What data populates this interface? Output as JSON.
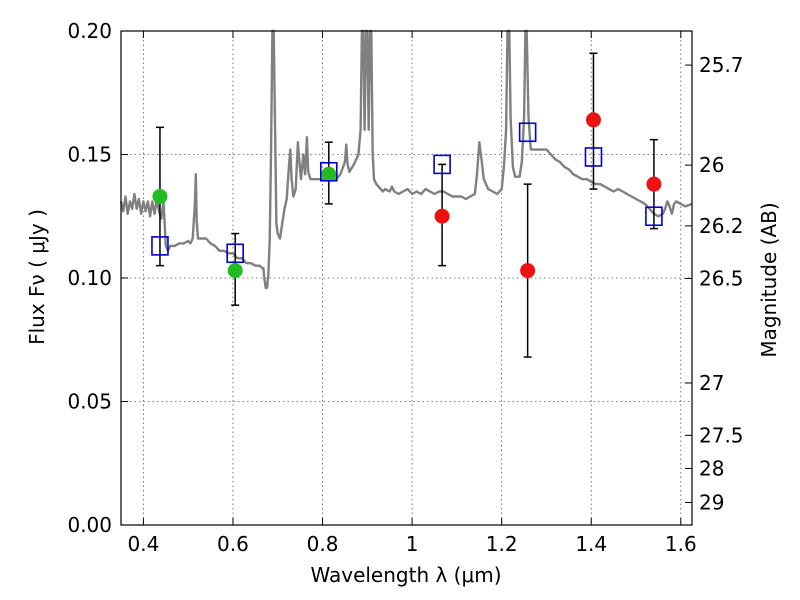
{
  "chart_data": {
    "type": "scatter",
    "xlabel": "Wavelength  λ (μm)",
    "ylabel": "Flux  Fν  ( μJy )",
    "ylabel_right": "Magnitude (AB)",
    "xlim": [
      0.35,
      1.625
    ],
    "ylim": [
      0.0,
      0.2
    ],
    "grid": true,
    "x_ticks": [
      0.4,
      0.6,
      0.8,
      1.0,
      1.2,
      1.4,
      1.6
    ],
    "x_tick_labels": [
      "0.4",
      "0.6",
      "0.8",
      "1",
      "1.2",
      "1.4",
      "1.6"
    ],
    "y_ticks": [
      0.0,
      0.05,
      0.1,
      0.15,
      0.2
    ],
    "y_tick_labels": [
      "0.00",
      "0.05",
      "0.10",
      "0.15",
      "0.20"
    ],
    "mag_ticks": [
      {
        "label": "25.7",
        "flux": 0.1862
      },
      {
        "label": "26",
        "flux": 0.1457
      },
      {
        "label": "26.2",
        "flux": 0.1211
      },
      {
        "label": "26.5",
        "flux": 0.0998
      },
      {
        "label": "27",
        "flux": 0.0575
      },
      {
        "label": "27.5",
        "flux": 0.0363
      },
      {
        "label": "28",
        "flux": 0.0229
      },
      {
        "label": "29",
        "flux": 0.0091
      }
    ],
    "colors": {
      "spectrum": "#808080",
      "model_box": "#0000cc",
      "green": "#22bb22",
      "red": "#ee1111",
      "errorbar": "#000000",
      "grid": "#555555"
    },
    "series": [
      {
        "kind": "spectrum",
        "points": [
          [
            0.35,
            0.131
          ],
          [
            0.355,
            0.127
          ],
          [
            0.36,
            0.133
          ],
          [
            0.365,
            0.126
          ],
          [
            0.37,
            0.131
          ],
          [
            0.375,
            0.128
          ],
          [
            0.38,
            0.134
          ],
          [
            0.385,
            0.128
          ],
          [
            0.39,
            0.132
          ],
          [
            0.395,
            0.126
          ],
          [
            0.4,
            0.131
          ],
          [
            0.405,
            0.127
          ],
          [
            0.41,
            0.131
          ],
          [
            0.415,
            0.125
          ],
          [
            0.42,
            0.131
          ],
          [
            0.425,
            0.126
          ],
          [
            0.43,
            0.132
          ],
          [
            0.435,
            0.127
          ],
          [
            0.44,
            0.124
          ],
          [
            0.445,
            0.131
          ],
          [
            0.45,
            0.113
          ],
          [
            0.455,
            0.111
          ],
          [
            0.46,
            0.113
          ],
          [
            0.47,
            0.113
          ],
          [
            0.48,
            0.114
          ],
          [
            0.49,
            0.114
          ],
          [
            0.5,
            0.115
          ],
          [
            0.505,
            0.114
          ],
          [
            0.51,
            0.116
          ],
          [
            0.515,
            0.13
          ],
          [
            0.517,
            0.142
          ],
          [
            0.519,
            0.123
          ],
          [
            0.522,
            0.116
          ],
          [
            0.53,
            0.116
          ],
          [
            0.54,
            0.116
          ],
          [
            0.55,
            0.114
          ],
          [
            0.56,
            0.113
          ],
          [
            0.57,
            0.111
          ],
          [
            0.58,
            0.111
          ],
          [
            0.59,
            0.11
          ],
          [
            0.6,
            0.11
          ],
          [
            0.61,
            0.108
          ],
          [
            0.62,
            0.108
          ],
          [
            0.63,
            0.106
          ],
          [
            0.64,
            0.106
          ],
          [
            0.65,
            0.105
          ],
          [
            0.66,
            0.105
          ],
          [
            0.665,
            0.104
          ],
          [
            0.668,
            0.104
          ],
          [
            0.67,
            0.1
          ],
          [
            0.673,
            0.096
          ],
          [
            0.676,
            0.096
          ],
          [
            0.679,
            0.101
          ],
          [
            0.682,
            0.115
          ],
          [
            0.685,
            0.15
          ],
          [
            0.688,
            0.2
          ],
          [
            0.691,
            0.2
          ],
          [
            0.694,
            0.16
          ],
          [
            0.697,
            0.122
          ],
          [
            0.7,
            0.118
          ],
          [
            0.705,
            0.116
          ],
          [
            0.71,
            0.122
          ],
          [
            0.715,
            0.128
          ],
          [
            0.72,
            0.132
          ],
          [
            0.725,
            0.145
          ],
          [
            0.728,
            0.152
          ],
          [
            0.731,
            0.14
          ],
          [
            0.735,
            0.133
          ],
          [
            0.74,
            0.136
          ],
          [
            0.745,
            0.155
          ],
          [
            0.748,
            0.148
          ],
          [
            0.752,
            0.14
          ],
          [
            0.757,
            0.15
          ],
          [
            0.761,
            0.142
          ],
          [
            0.765,
            0.157
          ],
          [
            0.768,
            0.143
          ],
          [
            0.773,
            0.14
          ],
          [
            0.78,
            0.14
          ],
          [
            0.79,
            0.14
          ],
          [
            0.8,
            0.14
          ],
          [
            0.805,
            0.14
          ],
          [
            0.81,
            0.14
          ],
          [
            0.82,
            0.14
          ],
          [
            0.83,
            0.14
          ],
          [
            0.84,
            0.142
          ],
          [
            0.85,
            0.147
          ],
          [
            0.853,
            0.154
          ],
          [
            0.856,
            0.146
          ],
          [
            0.86,
            0.143
          ],
          [
            0.87,
            0.146
          ],
          [
            0.88,
            0.15
          ],
          [
            0.885,
            0.16
          ],
          [
            0.888,
            0.2
          ],
          [
            0.891,
            0.2
          ],
          [
            0.894,
            0.16
          ],
          [
            0.897,
            0.2
          ],
          [
            0.9,
            0.2
          ],
          [
            0.903,
            0.16
          ],
          [
            0.906,
            0.2
          ],
          [
            0.909,
            0.2
          ],
          [
            0.912,
            0.15
          ],
          [
            0.915,
            0.14
          ],
          [
            0.92,
            0.138
          ],
          [
            0.925,
            0.137
          ],
          [
            0.93,
            0.136
          ],
          [
            0.935,
            0.135
          ],
          [
            0.94,
            0.136
          ],
          [
            0.95,
            0.135
          ],
          [
            0.955,
            0.137
          ],
          [
            0.96,
            0.135
          ],
          [
            0.97,
            0.134
          ],
          [
            0.98,
            0.135
          ],
          [
            0.99,
            0.136
          ],
          [
            1.0,
            0.134
          ],
          [
            1.01,
            0.135
          ],
          [
            1.02,
            0.134
          ],
          [
            1.03,
            0.136
          ],
          [
            1.04,
            0.135
          ],
          [
            1.05,
            0.134
          ],
          [
            1.06,
            0.135
          ],
          [
            1.07,
            0.135
          ],
          [
            1.08,
            0.134
          ],
          [
            1.09,
            0.133
          ],
          [
            1.1,
            0.133
          ],
          [
            1.11,
            0.133
          ],
          [
            1.12,
            0.132
          ],
          [
            1.13,
            0.133
          ],
          [
            1.14,
            0.134
          ],
          [
            1.145,
            0.142
          ],
          [
            1.15,
            0.155
          ],
          [
            1.155,
            0.148
          ],
          [
            1.16,
            0.14
          ],
          [
            1.17,
            0.136
          ],
          [
            1.18,
            0.135
          ],
          [
            1.19,
            0.134
          ],
          [
            1.2,
            0.136
          ],
          [
            1.205,
            0.145
          ],
          [
            1.21,
            0.16
          ],
          [
            1.213,
            0.2
          ],
          [
            1.217,
            0.2
          ],
          [
            1.22,
            0.165
          ],
          [
            1.225,
            0.145
          ],
          [
            1.23,
            0.141
          ],
          [
            1.24,
            0.141
          ],
          [
            1.245,
            0.147
          ],
          [
            1.25,
            0.165
          ],
          [
            1.253,
            0.2
          ],
          [
            1.256,
            0.2
          ],
          [
            1.26,
            0.165
          ],
          [
            1.265,
            0.152
          ],
          [
            1.27,
            0.152
          ],
          [
            1.28,
            0.152
          ],
          [
            1.29,
            0.152
          ],
          [
            1.3,
            0.152
          ],
          [
            1.31,
            0.15
          ],
          [
            1.32,
            0.148
          ],
          [
            1.33,
            0.147
          ],
          [
            1.34,
            0.145
          ],
          [
            1.35,
            0.144
          ],
          [
            1.36,
            0.142
          ],
          [
            1.37,
            0.141
          ],
          [
            1.38,
            0.14
          ],
          [
            1.39,
            0.14
          ],
          [
            1.4,
            0.139
          ],
          [
            1.41,
            0.138
          ],
          [
            1.42,
            0.138
          ],
          [
            1.43,
            0.137
          ],
          [
            1.44,
            0.136
          ],
          [
            1.45,
            0.135
          ],
          [
            1.46,
            0.136
          ],
          [
            1.47,
            0.135
          ],
          [
            1.48,
            0.134
          ],
          [
            1.49,
            0.133
          ],
          [
            1.5,
            0.132
          ],
          [
            1.51,
            0.131
          ],
          [
            1.52,
            0.13
          ],
          [
            1.53,
            0.128
          ],
          [
            1.54,
            0.126
          ],
          [
            1.55,
            0.125
          ],
          [
            1.56,
            0.126
          ],
          [
            1.565,
            0.128
          ],
          [
            1.57,
            0.131
          ],
          [
            1.575,
            0.129
          ],
          [
            1.58,
            0.126
          ],
          [
            1.585,
            0.13
          ],
          [
            1.59,
            0.131
          ],
          [
            1.6,
            0.13
          ],
          [
            1.61,
            0.129
          ],
          [
            1.625,
            0.13
          ]
        ]
      },
      {
        "kind": "boxes",
        "points": [
          [
            0.437,
            0.113
          ],
          [
            0.605,
            0.11
          ],
          [
            0.814,
            0.143
          ],
          [
            1.067,
            0.146
          ],
          [
            1.258,
            0.159
          ],
          [
            1.405,
            0.149
          ],
          [
            1.54,
            0.125
          ]
        ]
      },
      {
        "kind": "green_points",
        "points": [
          {
            "x": 0.437,
            "y": 0.133,
            "err": [
              0.105,
              0.161
            ]
          },
          {
            "x": 0.605,
            "y": 0.103,
            "err": [
              0.089,
              0.118
            ]
          },
          {
            "x": 0.814,
            "y": 0.142,
            "err": [
              0.13,
              0.155
            ]
          }
        ]
      },
      {
        "kind": "red_points",
        "points": [
          {
            "x": 1.067,
            "y": 0.125,
            "err": [
              0.105,
              0.146
            ]
          },
          {
            "x": 1.258,
            "y": 0.103,
            "err": [
              0.068,
              0.138
            ]
          },
          {
            "x": 1.405,
            "y": 0.164,
            "err": [
              0.136,
              0.191
            ]
          },
          {
            "x": 1.54,
            "y": 0.138,
            "err": [
              0.12,
              0.156
            ]
          }
        ]
      }
    ]
  }
}
